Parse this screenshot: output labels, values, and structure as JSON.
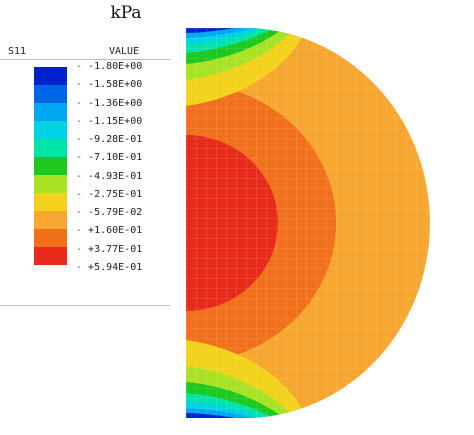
{
  "unit_title": "kPa",
  "legend": {
    "variable": "S11",
    "header": "VALUE",
    "levels": [
      {
        "label": "-1.80E+00",
        "color": "#0022cc"
      },
      {
        "label": "-1.58E+00",
        "color": "#0066e6"
      },
      {
        "label": "-1.36E+00",
        "color": "#00a8f2"
      },
      {
        "label": "-1.15E+00",
        "color": "#00d2e4"
      },
      {
        "label": "-9.28E-01",
        "color": "#00e4a6"
      },
      {
        "label": "-7.10E-01",
        "color": "#1ec81e"
      },
      {
        "label": "-4.93E-01",
        "color": "#a8e224"
      },
      {
        "label": "-2.75E-01",
        "color": "#f2d21a"
      },
      {
        "label": "-5.79E-02",
        "color": "#f7a630"
      },
      {
        "label": "+1.60E-01",
        "color": "#f0701c"
      },
      {
        "label": "+3.77E-01",
        "color": "#e82a1a"
      },
      {
        "label": "+5.94E-01",
        "color": null
      }
    ]
  }
}
